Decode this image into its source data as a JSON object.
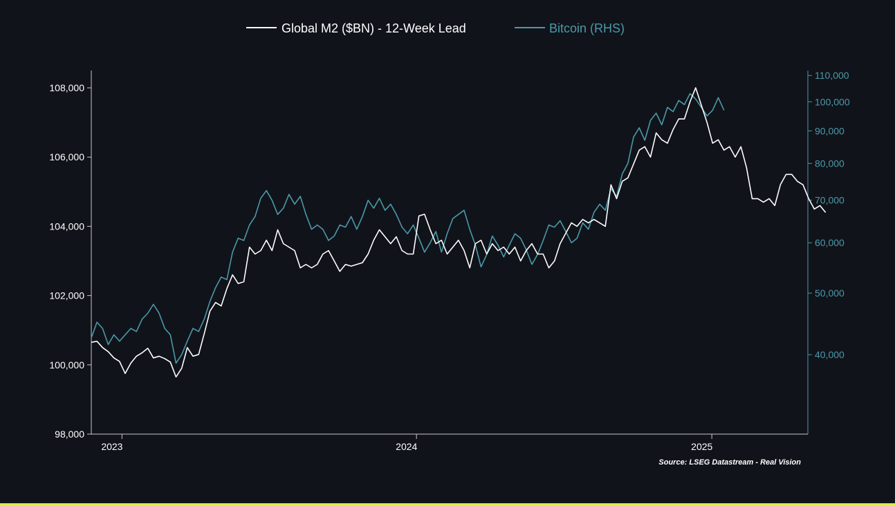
{
  "chart_data": {
    "type": "line",
    "legend_position": "top-center",
    "grid": false,
    "source": "Source: LSEG Datastream - Real Vision",
    "x_axis": {
      "range": [
        "2022-11-24",
        "2025-04-30"
      ],
      "ticks": [
        {
          "date": "2023-01-01",
          "label": "2023"
        },
        {
          "date": "2024-01-01",
          "label": "2024"
        },
        {
          "date": "2025-01-01",
          "label": "2025"
        }
      ]
    },
    "y_left": {
      "range": [
        98000,
        108500
      ],
      "ticks": [
        98000,
        100000,
        102000,
        104000,
        106000,
        108000
      ],
      "tick_labels": [
        "98,000",
        "100,000",
        "102,000",
        "104,000",
        "106,000",
        "108,000"
      ],
      "scale": "linear"
    },
    "y_right": {
      "range": [
        30000,
        112000
      ],
      "ticks": [
        40000,
        50000,
        60000,
        70000,
        80000,
        90000,
        100000,
        110000
      ],
      "tick_labels": [
        "40,000",
        "50,000",
        "60,000",
        "70,000",
        "80,000",
        "90,000",
        "100,000",
        "110,000"
      ],
      "scale": "log"
    },
    "series": [
      {
        "name": "Global M2 ($BN) - 12-Week Lead",
        "axis": "left",
        "color": "#ffffff",
        "points": [
          [
            "2022-11-24",
            100650
          ],
          [
            "2022-12-01",
            100680
          ],
          [
            "2022-12-08",
            100500
          ],
          [
            "2022-12-15",
            100380
          ],
          [
            "2022-12-22",
            100200
          ],
          [
            "2022-12-29",
            100100
          ],
          [
            "2023-01-05",
            99750
          ],
          [
            "2023-01-12",
            100050
          ],
          [
            "2023-01-19",
            100250
          ],
          [
            "2023-01-26",
            100350
          ],
          [
            "2023-02-02",
            100480
          ],
          [
            "2023-02-09",
            100200
          ],
          [
            "2023-02-16",
            100250
          ],
          [
            "2023-02-23",
            100180
          ],
          [
            "2023-03-02",
            100080
          ],
          [
            "2023-03-09",
            99650
          ],
          [
            "2023-03-16",
            99900
          ],
          [
            "2023-03-23",
            100500
          ],
          [
            "2023-03-30",
            100250
          ],
          [
            "2023-04-06",
            100300
          ],
          [
            "2023-04-13",
            100900
          ],
          [
            "2023-04-20",
            101550
          ],
          [
            "2023-04-27",
            101800
          ],
          [
            "2023-05-04",
            101700
          ],
          [
            "2023-05-11",
            102200
          ],
          [
            "2023-05-18",
            102600
          ],
          [
            "2023-05-25",
            102350
          ],
          [
            "2023-06-01",
            102400
          ],
          [
            "2023-06-08",
            103400
          ],
          [
            "2023-06-15",
            103200
          ],
          [
            "2023-06-22",
            103300
          ],
          [
            "2023-06-29",
            103600
          ],
          [
            "2023-07-06",
            103300
          ],
          [
            "2023-07-13",
            103900
          ],
          [
            "2023-07-20",
            103500
          ],
          [
            "2023-07-27",
            103400
          ],
          [
            "2023-08-03",
            103300
          ],
          [
            "2023-08-10",
            102800
          ],
          [
            "2023-08-17",
            102900
          ],
          [
            "2023-08-24",
            102800
          ],
          [
            "2023-08-31",
            102900
          ],
          [
            "2023-09-07",
            103200
          ],
          [
            "2023-09-14",
            103300
          ],
          [
            "2023-09-21",
            103000
          ],
          [
            "2023-09-28",
            102700
          ],
          [
            "2023-10-05",
            102900
          ],
          [
            "2023-10-12",
            102850
          ],
          [
            "2023-10-19",
            102900
          ],
          [
            "2023-10-26",
            102950
          ],
          [
            "2023-11-02",
            103200
          ],
          [
            "2023-11-09",
            103600
          ],
          [
            "2023-11-16",
            103900
          ],
          [
            "2023-11-23",
            103700
          ],
          [
            "2023-11-30",
            103500
          ],
          [
            "2023-12-07",
            103700
          ],
          [
            "2023-12-14",
            103300
          ],
          [
            "2023-12-21",
            103200
          ],
          [
            "2023-12-28",
            103200
          ],
          [
            "2024-01-04",
            104300
          ],
          [
            "2024-01-11",
            104350
          ],
          [
            "2024-01-18",
            103900
          ],
          [
            "2024-01-25",
            103500
          ],
          [
            "2024-02-01",
            103600
          ],
          [
            "2024-02-08",
            103200
          ],
          [
            "2024-02-15",
            103400
          ],
          [
            "2024-02-22",
            103600
          ],
          [
            "2024-02-29",
            103300
          ],
          [
            "2024-03-07",
            102800
          ],
          [
            "2024-03-14",
            103500
          ],
          [
            "2024-03-21",
            103600
          ],
          [
            "2024-03-28",
            103200
          ],
          [
            "2024-04-04",
            103500
          ],
          [
            "2024-04-11",
            103300
          ],
          [
            "2024-04-18",
            103400
          ],
          [
            "2024-04-25",
            103200
          ],
          [
            "2024-05-02",
            103400
          ],
          [
            "2024-05-09",
            103000
          ],
          [
            "2024-05-16",
            103300
          ],
          [
            "2024-05-23",
            103500
          ],
          [
            "2024-05-30",
            103200
          ],
          [
            "2024-06-06",
            103200
          ],
          [
            "2024-06-13",
            102800
          ],
          [
            "2024-06-20",
            103000
          ],
          [
            "2024-06-27",
            103500
          ],
          [
            "2024-07-04",
            103800
          ],
          [
            "2024-07-11",
            104100
          ],
          [
            "2024-07-18",
            104000
          ],
          [
            "2024-07-25",
            104200
          ],
          [
            "2024-08-01",
            104100
          ],
          [
            "2024-08-08",
            104200
          ],
          [
            "2024-08-15",
            104100
          ],
          [
            "2024-08-22",
            104000
          ],
          [
            "2024-08-29",
            105200
          ],
          [
            "2024-09-05",
            104800
          ],
          [
            "2024-09-12",
            105300
          ],
          [
            "2024-09-19",
            105400
          ],
          [
            "2024-09-26",
            105800
          ],
          [
            "2024-10-03",
            106200
          ],
          [
            "2024-10-10",
            106300
          ],
          [
            "2024-10-17",
            106000
          ],
          [
            "2024-10-24",
            106700
          ],
          [
            "2024-10-31",
            106500
          ],
          [
            "2024-11-07",
            106400
          ],
          [
            "2024-11-14",
            106800
          ],
          [
            "2024-11-21",
            107100
          ],
          [
            "2024-11-28",
            107100
          ],
          [
            "2024-12-05",
            107600
          ],
          [
            "2024-12-12",
            108000
          ],
          [
            "2024-12-19",
            107500
          ],
          [
            "2024-12-26",
            107000
          ],
          [
            "2025-01-02",
            106400
          ],
          [
            "2025-01-09",
            106500
          ],
          [
            "2025-01-16",
            106200
          ],
          [
            "2025-01-23",
            106300
          ],
          [
            "2025-01-30",
            106000
          ],
          [
            "2025-02-06",
            106300
          ],
          [
            "2025-02-13",
            105700
          ],
          [
            "2025-02-20",
            104800
          ],
          [
            "2025-02-27",
            104800
          ],
          [
            "2025-03-06",
            104700
          ],
          [
            "2025-03-13",
            104800
          ],
          [
            "2025-03-20",
            104600
          ],
          [
            "2025-03-27",
            105200
          ],
          [
            "2025-04-03",
            105500
          ],
          [
            "2025-04-10",
            105500
          ],
          [
            "2025-04-17",
            105300
          ],
          [
            "2025-04-24",
            105200
          ],
          [
            "2025-05-01",
            104800
          ],
          [
            "2025-05-08",
            104500
          ],
          [
            "2025-05-15",
            104600
          ],
          [
            "2025-05-22",
            104400
          ]
        ]
      },
      {
        "name": "Bitcoin (RHS)",
        "axis": "right",
        "color": "#4a9aa8",
        "points": [
          [
            "2022-11-24",
            42500
          ],
          [
            "2022-12-01",
            45000
          ],
          [
            "2022-12-08",
            44000
          ],
          [
            "2022-12-15",
            41500
          ],
          [
            "2022-12-22",
            43000
          ],
          [
            "2022-12-29",
            42000
          ],
          [
            "2023-01-05",
            43000
          ],
          [
            "2023-01-12",
            44000
          ],
          [
            "2023-01-19",
            43500
          ],
          [
            "2023-01-26",
            45500
          ],
          [
            "2023-02-02",
            46500
          ],
          [
            "2023-02-09",
            48000
          ],
          [
            "2023-02-16",
            46500
          ],
          [
            "2023-02-23",
            44000
          ],
          [
            "2023-03-02",
            43000
          ],
          [
            "2023-03-09",
            38800
          ],
          [
            "2023-03-16",
            40000
          ],
          [
            "2023-03-23",
            42000
          ],
          [
            "2023-03-30",
            44000
          ],
          [
            "2023-04-06",
            43500
          ],
          [
            "2023-04-13",
            45500
          ],
          [
            "2023-04-20",
            48500
          ],
          [
            "2023-04-27",
            51000
          ],
          [
            "2023-05-04",
            53000
          ],
          [
            "2023-05-11",
            52500
          ],
          [
            "2023-05-18",
            58000
          ],
          [
            "2023-05-25",
            61000
          ],
          [
            "2023-06-01",
            60500
          ],
          [
            "2023-06-08",
            64000
          ],
          [
            "2023-06-15",
            66000
          ],
          [
            "2023-06-22",
            70500
          ],
          [
            "2023-06-29",
            72500
          ],
          [
            "2023-07-06",
            70000
          ],
          [
            "2023-07-13",
            66500
          ],
          [
            "2023-07-20",
            68000
          ],
          [
            "2023-07-27",
            71500
          ],
          [
            "2023-08-03",
            69000
          ],
          [
            "2023-08-10",
            71000
          ],
          [
            "2023-08-17",
            66500
          ],
          [
            "2023-08-24",
            63000
          ],
          [
            "2023-08-31",
            64000
          ],
          [
            "2023-09-07",
            63000
          ],
          [
            "2023-09-14",
            60500
          ],
          [
            "2023-09-21",
            61500
          ],
          [
            "2023-09-28",
            64000
          ],
          [
            "2023-10-05",
            63500
          ],
          [
            "2023-10-12",
            66000
          ],
          [
            "2023-10-19",
            63000
          ],
          [
            "2023-10-26",
            66000
          ],
          [
            "2023-11-02",
            70000
          ],
          [
            "2023-11-09",
            68000
          ],
          [
            "2023-11-16",
            70500
          ],
          [
            "2023-11-23",
            67500
          ],
          [
            "2023-11-30",
            69000
          ],
          [
            "2023-12-07",
            66500
          ],
          [
            "2023-12-14",
            63500
          ],
          [
            "2023-12-21",
            62000
          ],
          [
            "2023-12-28",
            64000
          ],
          [
            "2024-01-04",
            61000
          ],
          [
            "2024-01-11",
            58000
          ],
          [
            "2024-01-18",
            60000
          ],
          [
            "2024-01-25",
            62500
          ],
          [
            "2024-02-01",
            58000
          ],
          [
            "2024-02-08",
            62000
          ],
          [
            "2024-02-15",
            65500
          ],
          [
            "2024-02-22",
            66500
          ],
          [
            "2024-02-29",
            67500
          ],
          [
            "2024-03-07",
            63000
          ],
          [
            "2024-03-14",
            59500
          ],
          [
            "2024-03-21",
            55000
          ],
          [
            "2024-03-28",
            57500
          ],
          [
            "2024-04-04",
            61500
          ],
          [
            "2024-04-11",
            59500
          ],
          [
            "2024-04-18",
            57000
          ],
          [
            "2024-04-25",
            59500
          ],
          [
            "2024-05-02",
            62000
          ],
          [
            "2024-05-09",
            61000
          ],
          [
            "2024-05-16",
            58500
          ],
          [
            "2024-05-23",
            55500
          ],
          [
            "2024-05-30",
            57500
          ],
          [
            "2024-06-06",
            60500
          ],
          [
            "2024-06-13",
            64000
          ],
          [
            "2024-06-20",
            63500
          ],
          [
            "2024-06-27",
            65000
          ],
          [
            "2024-07-04",
            62500
          ],
          [
            "2024-07-11",
            60000
          ],
          [
            "2024-07-18",
            61000
          ],
          [
            "2024-07-25",
            64500
          ],
          [
            "2024-08-01",
            63000
          ],
          [
            "2024-08-08",
            67000
          ],
          [
            "2024-08-15",
            69000
          ],
          [
            "2024-08-22",
            67500
          ],
          [
            "2024-08-29",
            73000
          ],
          [
            "2024-09-05",
            71000
          ],
          [
            "2024-09-12",
            77000
          ],
          [
            "2024-09-19",
            80000
          ],
          [
            "2024-09-26",
            88000
          ],
          [
            "2024-10-03",
            91000
          ],
          [
            "2024-10-10",
            87000
          ],
          [
            "2024-10-17",
            93500
          ],
          [
            "2024-10-24",
            96000
          ],
          [
            "2024-10-31",
            92000
          ],
          [
            "2024-11-07",
            98000
          ],
          [
            "2024-11-14",
            96500
          ],
          [
            "2024-11-21",
            100500
          ],
          [
            "2024-11-28",
            99000
          ],
          [
            "2024-12-05",
            103000
          ],
          [
            "2024-12-12",
            101000
          ],
          [
            "2024-12-19",
            98000
          ],
          [
            "2024-12-26",
            95000
          ],
          [
            "2025-01-02",
            97000
          ],
          [
            "2025-01-09",
            101500
          ],
          [
            "2025-01-16",
            97000
          ]
        ]
      }
    ]
  }
}
